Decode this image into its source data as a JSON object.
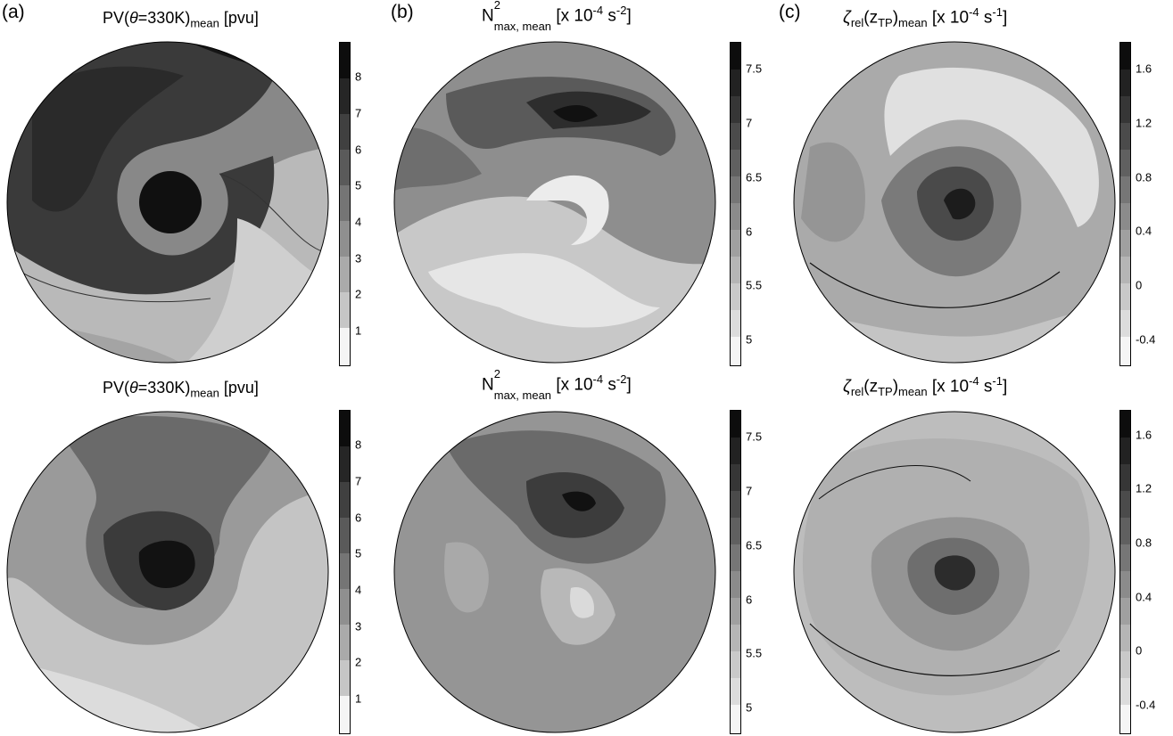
{
  "panels": {
    "a": {
      "label": "(a)",
      "title_main": "PV(",
      "title_theta": "θ",
      "title_rest": "=330K)",
      "title_sub": "mean",
      "title_units": " [pvu]",
      "colorbar_ticks": [
        "1",
        "2",
        "3",
        "4",
        "5",
        "6",
        "7",
        "8"
      ],
      "colorbar_range": [
        0,
        9
      ]
    },
    "b": {
      "label": "(b)",
      "title_main": "N",
      "title_sup": "2",
      "title_sub": "max, mean",
      "title_units": " [x 10",
      "title_exp": "-4",
      "title_units2": " s",
      "title_exp2": "-2",
      "title_close": "]",
      "colorbar_ticks": [
        "5",
        "5.5",
        "6",
        "6.5",
        "7",
        "7.5"
      ],
      "colorbar_range": [
        4.75,
        7.75
      ]
    },
    "c": {
      "label": "(c)",
      "title_main": "ζ",
      "title_sub": "rel",
      "title_mid": "(z",
      "title_sub2": "TP",
      "title_mid2": ")",
      "title_sub3": "mean",
      "title_units": " [x 10",
      "title_exp": "-4",
      "title_units2": " s",
      "title_exp2": "-1",
      "title_close": "]",
      "colorbar_ticks_top": [
        "-0.4",
        "0",
        "0.4",
        "0.8",
        "1.2",
        "1.6"
      ],
      "colorbar_ticks_bottom": [
        "-0.4",
        "0",
        "0.4",
        "0.8",
        "1.2",
        "1.6"
      ],
      "colorbar_range": [
        -0.6,
        1.8
      ]
    }
  }
}
